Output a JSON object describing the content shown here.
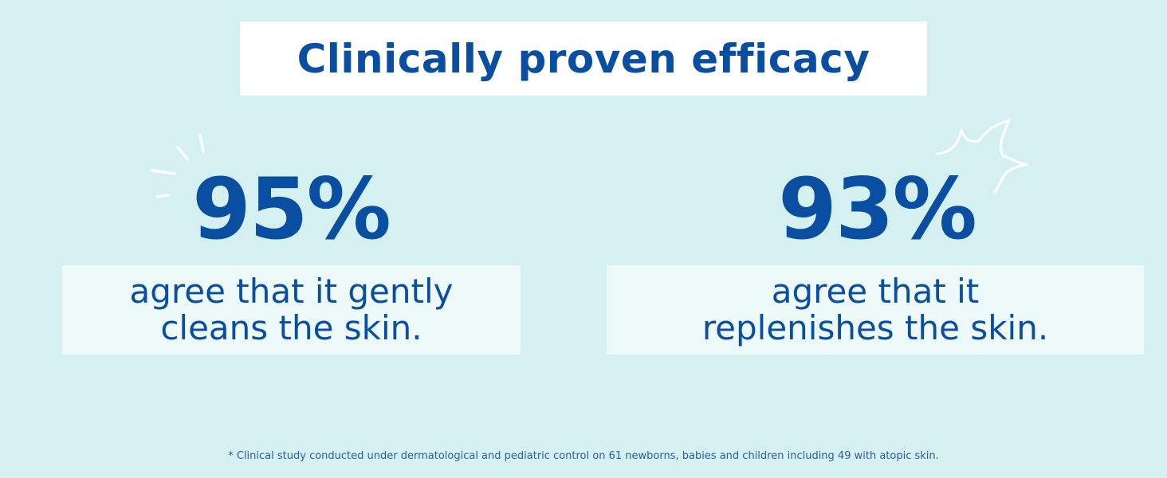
{
  "title": "Clinically proven efficacy",
  "stats": [
    {
      "value": "95%",
      "line1": "agree that it gently",
      "line2": "cleans the skin."
    },
    {
      "value": "93%",
      "line1": "agree that it",
      "line2": "replenishes the skin."
    }
  ],
  "footnote": "* Clinical study conducted under dermatological and pediatric control on 61 newborns, babies and children including 49 with atopic skin.",
  "colors": {
    "background": "#d5f0f1",
    "accent": "#0a4ea2",
    "panel": "#eef9fa"
  },
  "icons": [
    "sparkle-left-icon",
    "sparkle-burst-icon"
  ]
}
